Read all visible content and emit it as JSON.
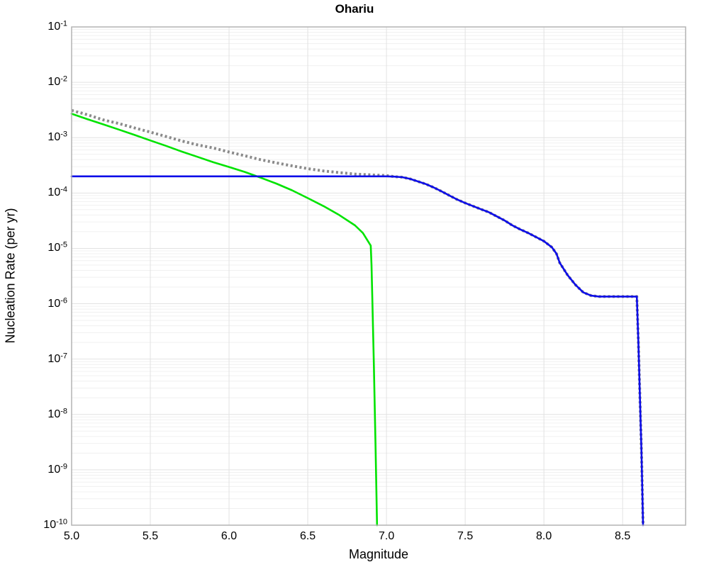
{
  "title": "Ohariu",
  "chart_data": {
    "type": "line",
    "title": "Ohariu",
    "xlabel": "Magnitude",
    "ylabel": "Nucleation Rate (per yr)",
    "xlim": [
      5.0,
      8.9
    ],
    "ylim": [
      1e-10,
      0.1
    ],
    "x_scale": "linear",
    "y_scale": "log",
    "grid": true,
    "legend": "none",
    "x_tick_values": [
      5.0,
      5.5,
      6.0,
      6.5,
      7.0,
      7.5,
      8.0,
      8.5
    ],
    "x_tick_labels": [
      "5.0",
      "5.5",
      "6.0",
      "6.5",
      "7.0",
      "7.5",
      "8.0",
      "8.5"
    ],
    "y_tick_base": "10",
    "y_tick_exponents": [
      "-1",
      "-2",
      "-3",
      "-4",
      "-5",
      "-6",
      "-7",
      "-8",
      "-9",
      "-10"
    ],
    "colors": {
      "green_line": "#00e300",
      "gray_dotted_line": "#8a8a8a",
      "blue_line": "#0d0de8",
      "grid_minor": "#f0f0f0",
      "grid_major": "#e2e2e2",
      "plot_border": "#b3b3b3"
    },
    "series": [
      {
        "name": "gray-dotted-line",
        "color": "#8a8a8a",
        "style": "dotted",
        "points": [
          [
            5.0,
            0.0031
          ],
          [
            5.1,
            0.0026
          ],
          [
            5.2,
            0.0021
          ],
          [
            5.3,
            0.0018
          ],
          [
            5.4,
            0.0015
          ],
          [
            5.5,
            0.00126
          ],
          [
            5.6,
            0.00105
          ],
          [
            5.7,
            0.00087
          ],
          [
            5.8,
            0.00074
          ],
          [
            5.9,
            0.00065
          ],
          [
            6.0,
            0.00055
          ],
          [
            6.1,
            0.00047
          ],
          [
            6.2,
            0.0004
          ],
          [
            6.3,
            0.00035
          ],
          [
            6.4,
            0.00031
          ],
          [
            6.5,
            0.000275
          ],
          [
            6.6,
            0.00025
          ],
          [
            6.7,
            0.000234
          ],
          [
            6.8,
            0.00022
          ],
          [
            6.9,
            0.000213
          ],
          [
            7.0,
            0.000207
          ],
          [
            7.05,
            0.000198
          ],
          [
            7.1,
            0.000193
          ],
          [
            7.15,
            0.00018
          ],
          [
            7.2,
            0.000162
          ],
          [
            7.25,
            0.000145
          ],
          [
            7.3,
            0.000126
          ],
          [
            7.35,
            0.000107
          ],
          [
            7.4,
            9e-05
          ],
          [
            7.45,
            7.6e-05
          ],
          [
            7.5,
            6.6e-05
          ],
          [
            7.55,
            5.8e-05
          ],
          [
            7.6,
            5.1e-05
          ],
          [
            7.65,
            4.5e-05
          ],
          [
            7.7,
            3.8e-05
          ],
          [
            7.75,
            3.2e-05
          ],
          [
            7.8,
            2.6e-05
          ],
          [
            7.85,
            2.2e-05
          ],
          [
            7.9,
            1.9e-05
          ],
          [
            7.95,
            1.6e-05
          ],
          [
            8.0,
            1.35e-05
          ],
          [
            8.05,
            1.05e-05
          ],
          [
            8.08,
            8e-06
          ],
          [
            8.1,
            5.5e-06
          ],
          [
            8.15,
            3.3e-06
          ],
          [
            8.2,
            2.2e-06
          ],
          [
            8.25,
            1.6e-06
          ],
          [
            8.3,
            1.4e-06
          ],
          [
            8.35,
            1.35e-06
          ],
          [
            8.45,
            1.35e-06
          ],
          [
            8.59,
            1.35e-06
          ],
          [
            8.6,
            2e-07
          ],
          [
            8.61,
            2e-08
          ],
          [
            8.62,
            2e-09
          ],
          [
            8.63,
            1e-10
          ]
        ]
      },
      {
        "name": "green-solid-line",
        "color": "#00e300",
        "style": "solid",
        "points": [
          [
            5.0,
            0.0027
          ],
          [
            5.1,
            0.00216
          ],
          [
            5.2,
            0.00174
          ],
          [
            5.3,
            0.0014
          ],
          [
            5.4,
            0.00112
          ],
          [
            5.5,
            0.00089
          ],
          [
            5.6,
            0.00071
          ],
          [
            5.7,
            0.00056
          ],
          [
            5.8,
            0.00045
          ],
          [
            5.9,
            0.00036
          ],
          [
            6.0,
            0.000295
          ],
          [
            6.1,
            0.00024
          ],
          [
            6.2,
            0.00019
          ],
          [
            6.3,
            0.000148
          ],
          [
            6.4,
            0.000112
          ],
          [
            6.5,
            8.1e-05
          ],
          [
            6.6,
            5.8e-05
          ],
          [
            6.7,
            4e-05
          ],
          [
            6.8,
            2.6e-05
          ],
          [
            6.85,
            1.9e-05
          ],
          [
            6.9,
            1.12e-05
          ],
          [
            6.905,
            5e-06
          ],
          [
            6.91,
            1.3e-06
          ],
          [
            6.92,
            8e-08
          ],
          [
            6.93,
            3e-09
          ],
          [
            6.94,
            1e-10
          ]
        ]
      },
      {
        "name": "blue-solid-line",
        "color": "#0d0de8",
        "style": "solid",
        "points": [
          [
            5.0,
            0.0002
          ],
          [
            6.0,
            0.0002
          ],
          [
            7.0,
            0.0002
          ],
          [
            7.05,
            0.000198
          ],
          [
            7.1,
            0.000193
          ],
          [
            7.15,
            0.00018
          ],
          [
            7.2,
            0.000162
          ],
          [
            7.25,
            0.000145
          ],
          [
            7.3,
            0.000126
          ],
          [
            7.35,
            0.000107
          ],
          [
            7.4,
            9e-05
          ],
          [
            7.45,
            7.6e-05
          ],
          [
            7.5,
            6.6e-05
          ],
          [
            7.55,
            5.8e-05
          ],
          [
            7.6,
            5.1e-05
          ],
          [
            7.65,
            4.5e-05
          ],
          [
            7.7,
            3.8e-05
          ],
          [
            7.75,
            3.2e-05
          ],
          [
            7.8,
            2.6e-05
          ],
          [
            7.85,
            2.2e-05
          ],
          [
            7.9,
            1.9e-05
          ],
          [
            7.95,
            1.6e-05
          ],
          [
            8.0,
            1.35e-05
          ],
          [
            8.05,
            1.05e-05
          ],
          [
            8.08,
            8e-06
          ],
          [
            8.1,
            5.5e-06
          ],
          [
            8.15,
            3.3e-06
          ],
          [
            8.2,
            2.2e-06
          ],
          [
            8.25,
            1.6e-06
          ],
          [
            8.3,
            1.4e-06
          ],
          [
            8.35,
            1.35e-06
          ],
          [
            8.45,
            1.35e-06
          ],
          [
            8.59,
            1.35e-06
          ],
          [
            8.6,
            2e-07
          ],
          [
            8.61,
            2e-08
          ],
          [
            8.62,
            2e-09
          ],
          [
            8.63,
            1e-10
          ]
        ]
      }
    ]
  }
}
